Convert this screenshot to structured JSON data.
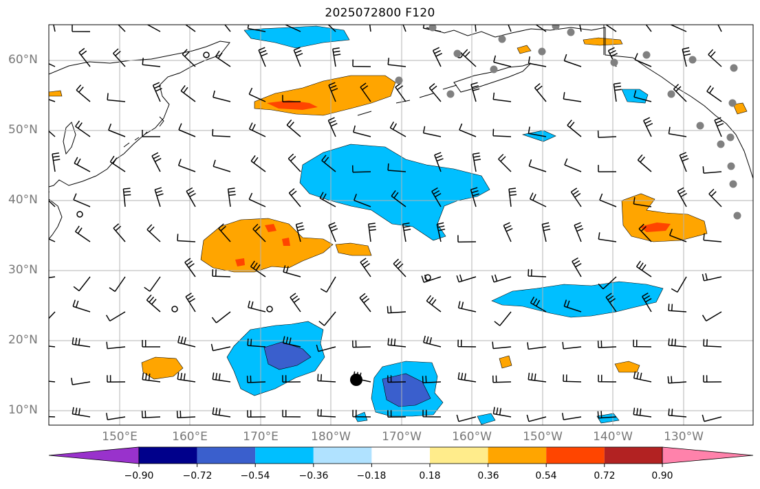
{
  "title": "2025072800 F120",
  "latitude_labels": [
    "60°N",
    "50°N",
    "40°N",
    "30°N",
    "20°N",
    "10°N"
  ],
  "longitude_labels": [
    "150°E",
    "160°E",
    "170°E",
    "180°W",
    "170°W",
    "160°W",
    "150°W",
    "140°W",
    "130°W"
  ],
  "colorbar": {
    "tick_labels": [
      "−0.90",
      "−0.72",
      "−0.54",
      "−0.36",
      "−0.18",
      "0.18",
      "0.36",
      "0.54",
      "0.72",
      "0.90"
    ],
    "colors": [
      "#9932cc",
      "#00008b",
      "#3a5fcd",
      "#00bfff",
      "#b0e2ff",
      "#ffffff",
      "#ffec8b",
      "#ffa500",
      "#ff4500",
      "#b22222",
      "#ff82ab"
    ]
  },
  "colors": {
    "negative_light": "#00bfff",
    "negative_medium": "#3a5fcd",
    "positive_light": "#ffa500",
    "positive_strong": "#ff4500",
    "positive_weak": "#ffec8b",
    "station_marker": "#808080"
  }
}
